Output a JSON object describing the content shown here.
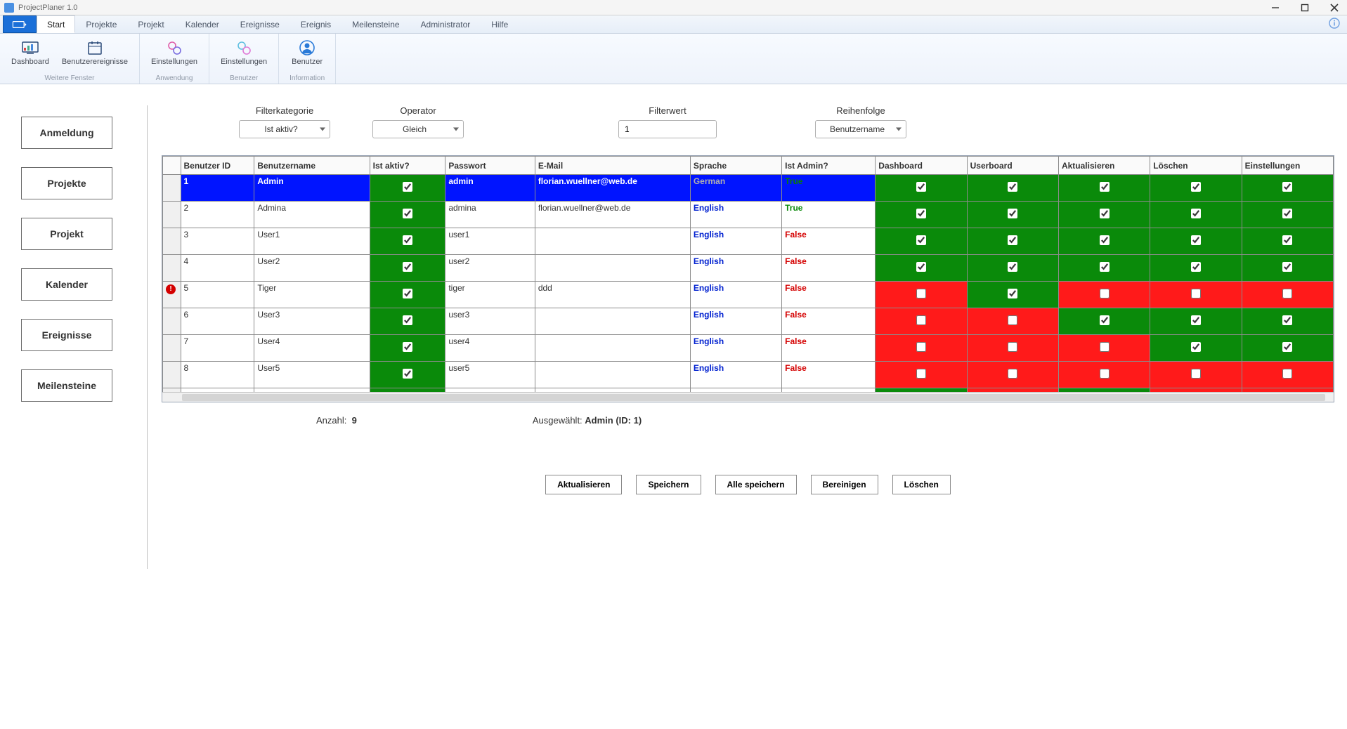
{
  "app": {
    "title": "ProjectPlaner 1.0"
  },
  "menu": {
    "tabs": [
      "Start",
      "Projekte",
      "Projekt",
      "Kalender",
      "Ereignisse",
      "Ereignis",
      "Meilensteine",
      "Administrator",
      "Hilfe"
    ],
    "active_index": 0
  },
  "ribbon": {
    "group1": {
      "label": "Weitere Fenster",
      "items": [
        "Dashboard",
        "Benutzerereignisse"
      ]
    },
    "group2": {
      "label": "Anwendung",
      "items": [
        "Einstellungen"
      ]
    },
    "group3": {
      "label": "Benutzer",
      "items": [
        "Einstellungen"
      ]
    },
    "group4": {
      "label": "Information",
      "items": [
        "Benutzer"
      ]
    }
  },
  "sidebar": {
    "items": [
      "Anmeldung",
      "Projekte",
      "Projekt",
      "Kalender",
      "Ereignisse",
      "Meilensteine"
    ]
  },
  "filters": {
    "category": {
      "label": "Filterkategorie",
      "value": "Ist aktiv?"
    },
    "operator": {
      "label": "Operator",
      "value": "Gleich"
    },
    "value": {
      "label": "Filterwert",
      "value": "1"
    },
    "order": {
      "label": "Reihenfolge",
      "value": "Benutzername"
    }
  },
  "grid": {
    "columns": [
      "Benutzer ID",
      "Benutzername",
      "Ist aktiv?",
      "Passwort",
      "E-Mail",
      "Sprache",
      "Ist Admin?",
      "Dashboard",
      "Userboard",
      "Aktualisieren",
      "Löschen",
      "Einstellungen"
    ],
    "alert_row_index": 4,
    "selected_index": 0,
    "colors": {
      "selected_bg": "#0014ff",
      "selected_fg": "#ffffff",
      "green": "#0a8a0a",
      "red": "#ff1a1a",
      "lang_color": "#0020d0",
      "admin_true": "#0a8a0a",
      "admin_false": "#d40000"
    },
    "rows": [
      {
        "id": "1",
        "name": "Admin",
        "active": true,
        "pw": "admin",
        "mail": "florian.wuellner@web.de",
        "lang": "German",
        "admin": "True",
        "flags": [
          true,
          true,
          true,
          true,
          true
        ],
        "flag_state": [
          "g",
          "g",
          "g",
          "g",
          "g"
        ]
      },
      {
        "id": "2",
        "name": "Admina",
        "active": true,
        "pw": "admina",
        "mail": "florian.wuellner@web.de",
        "lang": "English",
        "admin": "True",
        "flags": [
          true,
          true,
          true,
          true,
          true
        ],
        "flag_state": [
          "g",
          "g",
          "g",
          "g",
          "g"
        ]
      },
      {
        "id": "3",
        "name": "User1",
        "active": true,
        "pw": "user1",
        "mail": "",
        "lang": "English",
        "admin": "False",
        "flags": [
          true,
          true,
          true,
          true,
          true
        ],
        "flag_state": [
          "g",
          "g",
          "g",
          "g",
          "g"
        ]
      },
      {
        "id": "4",
        "name": "User2",
        "active": true,
        "pw": "user2",
        "mail": "",
        "lang": "English",
        "admin": "False",
        "flags": [
          true,
          true,
          true,
          true,
          true
        ],
        "flag_state": [
          "g",
          "g",
          "g",
          "g",
          "g"
        ]
      },
      {
        "id": "5",
        "name": "Tiger",
        "active": true,
        "pw": "tiger",
        "mail": "ddd",
        "lang": "English",
        "admin": "False",
        "flags": [
          false,
          true,
          false,
          false,
          false
        ],
        "flag_state": [
          "r",
          "g",
          "r",
          "r",
          "r"
        ]
      },
      {
        "id": "6",
        "name": "User3",
        "active": true,
        "pw": "user3",
        "mail": "",
        "lang": "English",
        "admin": "False",
        "flags": [
          false,
          false,
          true,
          true,
          true
        ],
        "flag_state": [
          "r",
          "r",
          "g",
          "g",
          "g"
        ]
      },
      {
        "id": "7",
        "name": "User4",
        "active": true,
        "pw": "user4",
        "mail": "",
        "lang": "English",
        "admin": "False",
        "flags": [
          false,
          false,
          false,
          true,
          true
        ],
        "flag_state": [
          "r",
          "r",
          "r",
          "g",
          "g"
        ]
      },
      {
        "id": "8",
        "name": "User5",
        "active": true,
        "pw": "user5",
        "mail": "",
        "lang": "English",
        "admin": "False",
        "flags": [
          false,
          false,
          false,
          false,
          false
        ],
        "flag_state": [
          "r",
          "r",
          "r",
          "r",
          "r"
        ]
      }
    ],
    "partial_row_flag_state": [
      "g",
      "r",
      "g",
      "r",
      "r"
    ]
  },
  "status": {
    "count_label": "Anzahl:",
    "count_value": "9",
    "selected_label": "Ausgewählt:",
    "selected_value": "Admin (ID: 1)"
  },
  "actions": [
    "Aktualisieren",
    "Speichern",
    "Alle speichern",
    "Bereinigen",
    "Löschen"
  ]
}
